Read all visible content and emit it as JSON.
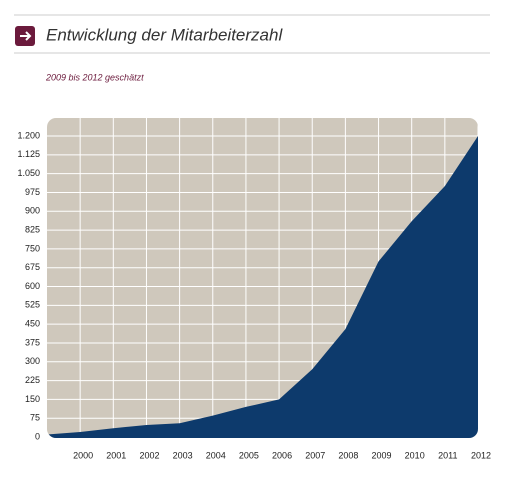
{
  "chart_data": {
    "type": "area",
    "title": "Entwicklung der Mitarbeiterzahl",
    "subtitle": "2009 bis 2012 geschätzt",
    "x": [
      1999,
      2000,
      2001,
      2002,
      2003,
      2004,
      2005,
      2006,
      2007,
      2008,
      2009,
      2010,
      2011,
      2012
    ],
    "values": [
      10,
      20,
      35,
      48,
      55,
      85,
      120,
      150,
      270,
      430,
      700,
      860,
      1000,
      1200
    ],
    "color": "#0d3a6c",
    "background": "#cfc8bc",
    "xlim": [
      1999,
      2012
    ],
    "xticks": [
      2000,
      2001,
      2002,
      2003,
      2004,
      2005,
      2006,
      2007,
      2008,
      2009,
      2010,
      2011,
      2012
    ],
    "ylim": [
      0,
      1200
    ],
    "yticks": [
      0,
      75,
      150,
      225,
      300,
      375,
      450,
      525,
      600,
      675,
      750,
      825,
      900,
      975,
      {
        "value": 1050,
        "label": "1.050"
      },
      {
        "value": 1125,
        "label": "1.125"
      },
      {
        "value": 1200,
        "label": "1.200"
      }
    ],
    "grid": true
  }
}
